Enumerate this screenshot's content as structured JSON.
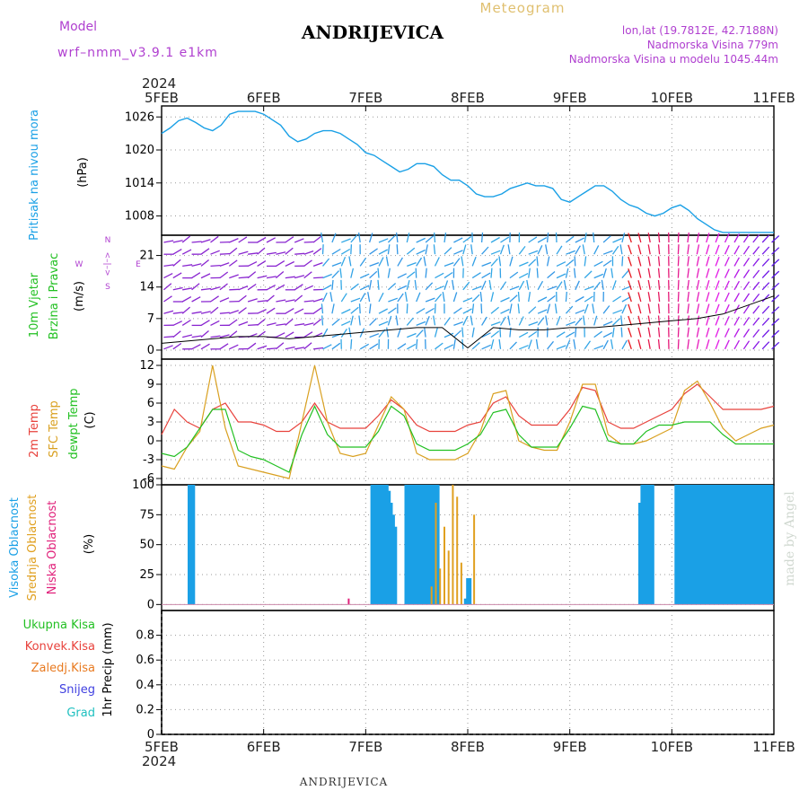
{
  "header": {
    "model_label": "Model",
    "model_name": "wrf–nmm_v3.9.1  e1km",
    "station": "ANDRIJEVICA",
    "product": "Meteogram",
    "lonlat": "lon,lat (19.7812E, 42.7188N)",
    "elevation": "Nadmorska Visina 779m",
    "model_elevation": "Nadmorska Visina u modelu 1045.44m",
    "year_top": "2024",
    "year_bottom": "2024",
    "footer_station": "ANDRIJEVICA",
    "credit": "made by Angel"
  },
  "colors": {
    "pressure": "#1aa0e6",
    "temp2m": "#e8423c",
    "sfc_temp": "#d9a020",
    "dewpoint": "#22c022",
    "high_cloud": "#1aa0e6",
    "mid_cloud": "#e0a020",
    "low_cloud": "#e0207a",
    "model_text": "#b040d0",
    "meteogram_text": "#e0c070"
  },
  "x_axis": {
    "ticks": [
      "5FEB",
      "6FEB",
      "7FEB",
      "8FEB",
      "9FEB",
      "10FEB",
      "11FEB"
    ]
  },
  "panels": {
    "pressure": {
      "ylabels": [
        "Pritisak na nivou mora",
        "(hPa)"
      ],
      "yticks": [
        "1026",
        "1020",
        "1014",
        "1008"
      ]
    },
    "wind": {
      "ylabels": [
        "10m Vjetar",
        "Brzina i Pravac",
        "(m/s)"
      ],
      "yticks": [
        "21",
        "14",
        "7",
        "0"
      ],
      "compass": {
        "n": "N",
        "w": "W",
        "e": "E",
        "s": "S",
        "arrows": "<–|–>"
      }
    },
    "temperature": {
      "ylabels": [
        "2m Temp",
        "SFC Temp",
        "dewpt Temp",
        "(C)"
      ],
      "yticks": [
        "12",
        "9",
        "6",
        "3",
        "0",
        "-3",
        "-6"
      ]
    },
    "cloud": {
      "ylabels": [
        "Visoka Oblacnost",
        "Srednja Oblacnost",
        "Niska Oblacnost",
        "(%)"
      ],
      "yticks": [
        "100",
        "75",
        "50",
        "25",
        "0"
      ]
    },
    "precip": {
      "ylabels": [
        "Ukupna Kisa",
        "Konvek.Kisa",
        "Zaledj.Kisa",
        "Snijeg",
        "Grad",
        "1hr Precip (mm)"
      ],
      "yticks": [
        "0.8",
        "0.6",
        "0.4",
        "0.2",
        "0"
      ]
    }
  },
  "chart_data": [
    {
      "type": "line",
      "title": "Pritisak na nivou mora",
      "ylabel": "(hPa)",
      "ylim": [
        1004.5,
        1028
      ],
      "x_unit": "hours from 5FEB 00",
      "series": [
        {
          "x": [
            0,
            2,
            4,
            6,
            8,
            10,
            12,
            14,
            16,
            18,
            20,
            22,
            24,
            26,
            28,
            30,
            32,
            34,
            36,
            38,
            40,
            42,
            44,
            46,
            48,
            50,
            52,
            54,
            56,
            58,
            60,
            62,
            64,
            66,
            68,
            70,
            72,
            74,
            76,
            78,
            80,
            82,
            84,
            86,
            88,
            90,
            92,
            94,
            96,
            98,
            100,
            102,
            104,
            106,
            108,
            110,
            112,
            114,
            116,
            118,
            120,
            122,
            124,
            126,
            128,
            130,
            132,
            134,
            136,
            138,
            140,
            142,
            144
          ],
          "values": [
            1023,
            1024,
            1025.3,
            1025.8,
            1025,
            1024,
            1023.5,
            1024.5,
            1026.5,
            1027,
            1027,
            1027,
            1026.5,
            1025.5,
            1024.5,
            1022.5,
            1021.5,
            1022,
            1023,
            1023.5,
            1023.5,
            1023,
            1022,
            1021,
            1019.5,
            1019,
            1018,
            1017,
            1016,
            1016.5,
            1017.5,
            1017.5,
            1017,
            1015.5,
            1014.5,
            1014.5,
            1013.5,
            1012,
            1011.5,
            1011.5,
            1012,
            1013,
            1013.5,
            1014,
            1013.5,
            1013.5,
            1013,
            1011,
            1010.5,
            1011.5,
            1012.5,
            1013.5,
            1013.5,
            1012.5,
            1011,
            1010,
            1009.5,
            1008.5,
            1008,
            1008.5,
            1009.5,
            1010,
            1009,
            1007.5,
            1006.5,
            1005.5,
            1005,
            1005,
            1005,
            1005,
            1005,
            1005,
            1005
          ]
        }
      ]
    },
    {
      "type": "line",
      "title": "10m Vjetar Brzina i Pravac",
      "ylabel": "(m/s)",
      "ylim": [
        -2,
        25.5
      ],
      "x_unit": "hours from 5FEB 00",
      "series": [
        {
          "x": [
            0,
            6,
            12,
            18,
            24,
            30,
            36,
            42,
            48,
            54,
            60,
            66,
            72,
            78,
            84,
            90,
            96,
            102,
            108,
            114,
            120,
            126,
            132,
            138,
            144
          ],
          "values": [
            1.5,
            2,
            2.5,
            3,
            3,
            2.5,
            3,
            3.5,
            4,
            4.5,
            5,
            5,
            0.5,
            5,
            4.5,
            4.5,
            5,
            5,
            5.5,
            6,
            6.5,
            7,
            8,
            10,
            12
          ]
        }
      ]
    },
    {
      "type": "line",
      "title": "2m Temp / SFC Temp / dewpt Temp",
      "ylabel": "(C)",
      "ylim": [
        -7,
        13
      ],
      "x_unit": "hours from 5FEB 00",
      "series": [
        {
          "name": "2m Temp",
          "x": [
            0,
            3,
            6,
            9,
            12,
            15,
            18,
            21,
            24,
            27,
            30,
            33,
            36,
            39,
            42,
            45,
            48,
            51,
            54,
            57,
            60,
            63,
            66,
            69,
            72,
            75,
            78,
            81,
            84,
            87,
            90,
            93,
            96,
            99,
            102,
            105,
            108,
            111,
            114,
            117,
            120,
            123,
            126,
            129,
            132,
            135,
            138,
            141,
            144
          ],
          "values": [
            1,
            5,
            3,
            2,
            5,
            6,
            3,
            3,
            2.5,
            1.5,
            1.5,
            3,
            6,
            3,
            2,
            2,
            2,
            4,
            6.5,
            5,
            2.5,
            1.5,
            1.5,
            1.5,
            2.5,
            3,
            6,
            7,
            4,
            2.5,
            2.5,
            2.5,
            5,
            8.5,
            8,
            3,
            2,
            2,
            3,
            4,
            5,
            7.5,
            9,
            7,
            5,
            5,
            5,
            5,
            5.5
          ]
        },
        {
          "name": "SFC Temp",
          "x": [
            0,
            3,
            6,
            9,
            12,
            15,
            18,
            21,
            24,
            27,
            30,
            33,
            36,
            39,
            42,
            45,
            48,
            51,
            54,
            57,
            60,
            63,
            66,
            69,
            72,
            75,
            78,
            81,
            84,
            87,
            90,
            93,
            96,
            99,
            102,
            105,
            108,
            111,
            114,
            117,
            120,
            123,
            126,
            129,
            132,
            135,
            138,
            141,
            144
          ],
          "values": [
            -4,
            -4.5,
            -1,
            1.5,
            12,
            2,
            -4,
            -4.5,
            -5,
            -5.5,
            -6,
            3,
            12,
            3,
            -2,
            -2.5,
            -2,
            2.5,
            7,
            5,
            -2,
            -3,
            -3,
            -3,
            -2,
            1.5,
            7.5,
            8,
            0,
            -1,
            -1.5,
            -1.5,
            3,
            9,
            9,
            1,
            -0.5,
            -0.5,
            0,
            1,
            2,
            8,
            9.5,
            6,
            2,
            0,
            1,
            2,
            2.5
          ]
        },
        {
          "name": "dewpt Temp",
          "x": [
            0,
            3,
            6,
            9,
            12,
            15,
            18,
            21,
            24,
            27,
            30,
            33,
            36,
            39,
            42,
            45,
            48,
            51,
            54,
            57,
            60,
            63,
            66,
            69,
            72,
            75,
            78,
            81,
            84,
            87,
            90,
            93,
            96,
            99,
            102,
            105,
            108,
            111,
            114,
            117,
            120,
            123,
            126,
            129,
            132,
            135,
            138,
            141,
            144
          ],
          "values": [
            -2,
            -2.5,
            -1,
            2,
            5,
            5,
            -1.5,
            -2.5,
            -3,
            -4,
            -5,
            1,
            5.5,
            1,
            -1,
            -1,
            -1,
            1.5,
            5.5,
            4,
            -0.5,
            -1.5,
            -1.5,
            -1.5,
            -0.5,
            1,
            4.5,
            5,
            1,
            -1,
            -1,
            -1,
            2,
            5.5,
            5,
            0,
            -0.5,
            -0.5,
            1.5,
            2.5,
            2.5,
            3,
            3,
            3,
            1,
            -0.5,
            -0.5,
            -0.5,
            -0.5
          ]
        }
      ]
    },
    {
      "type": "bar",
      "title": "Visoka / Srednja / Niska Oblacnost",
      "ylabel": "(%)",
      "ylim": [
        -5,
        100
      ],
      "x_unit": "hours from 5FEB 00",
      "series": [
        {
          "name": "Visoka Oblacnost",
          "x": [
            6.5,
            7.0,
            7.5,
            49.5,
            50.0,
            50.5,
            51.0,
            51.5,
            52.0,
            52.5,
            53.0,
            53.5,
            54.0,
            54.5,
            55.0,
            57.5,
            58.0,
            58.5,
            59.0,
            59.5,
            60.0,
            60.5,
            61.0,
            61.5,
            62.0,
            62.5,
            63.0,
            63.5,
            64.0,
            64.5,
            65.0,
            71.5,
            72.0,
            72.5,
            112.5,
            113.0,
            113.5,
            114.0,
            114.5,
            115.0,
            115.5,
            121.0,
            121.5,
            122.0,
            122.5,
            123.0,
            123.5,
            124.0,
            124.5,
            125.0,
            125.5,
            126.0,
            126.5,
            127.0,
            127.5,
            128.0,
            128.5,
            129.0,
            129.5,
            130.0,
            130.5,
            131.0,
            131.5,
            132.0,
            132.5,
            133.0,
            133.5,
            134.0,
            134.5,
            135.0,
            135.5,
            136.0,
            136.5,
            137.0,
            137.5,
            138.0,
            138.5,
            139.0,
            139.5,
            140.0,
            140.5,
            141.0,
            141.5,
            142.0,
            142.5,
            143.0,
            143.5
          ],
          "values": [
            100,
            100,
            100,
            100,
            100,
            100,
            100,
            100,
            100,
            100,
            100,
            95,
            85,
            75,
            65,
            100,
            100,
            100,
            100,
            100,
            100,
            100,
            100,
            100,
            100,
            100,
            100,
            100,
            100,
            100,
            100,
            5,
            22,
            22,
            85,
            100,
            100,
            100,
            100,
            100,
            100,
            100,
            100,
            100,
            100,
            100,
            100,
            100,
            100,
            100,
            100,
            100,
            100,
            100,
            100,
            100,
            100,
            100,
            100,
            100,
            100,
            100,
            100,
            100,
            100,
            100,
            100,
            100,
            100,
            100,
            100,
            100,
            100,
            100,
            100,
            100,
            100,
            100,
            100,
            100,
            100,
            100,
            100,
            100,
            100,
            100,
            100
          ]
        },
        {
          "name": "Srednja Oblacnost",
          "x": [
            63.5,
            64.5,
            65.5,
            66.5,
            67.5,
            68.5,
            69.5,
            70.5,
            73.5
          ],
          "values": [
            15,
            85,
            30,
            65,
            45,
            100,
            90,
            35,
            75
          ]
        },
        {
          "name": "Niska Oblacnost",
          "x": [
            44.0
          ],
          "values": [
            5
          ]
        }
      ]
    },
    {
      "type": "bar",
      "title": "1hr Precip (mm)",
      "ylabel": "1hr Precip (mm)",
      "ylim": [
        0,
        1
      ],
      "x_unit": "hours from 5FEB 00",
      "series": [
        {
          "name": "Ukupna Kisa",
          "x": [],
          "values": []
        },
        {
          "name": "Konvek.Kisa",
          "x": [],
          "values": []
        },
        {
          "name": "Zaledj.Kisa",
          "x": [],
          "values": []
        },
        {
          "name": "Snijeg",
          "x": [],
          "values": []
        },
        {
          "name": "Grad",
          "x": [],
          "values": []
        }
      ]
    }
  ]
}
